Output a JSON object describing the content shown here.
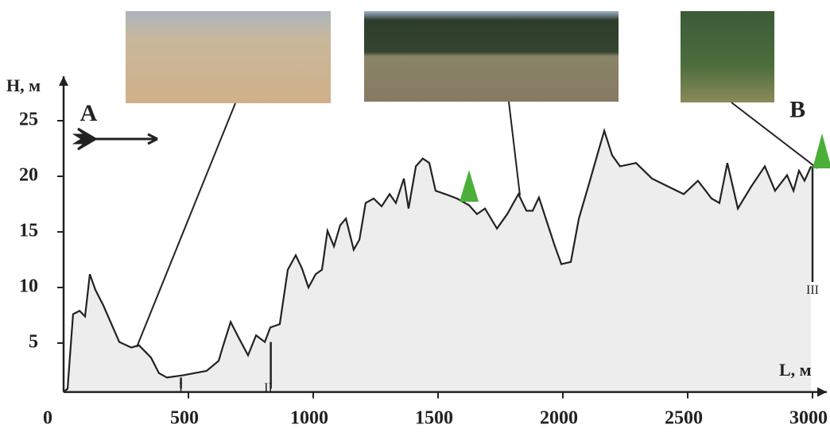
{
  "chart_data": {
    "type": "area",
    "x_label": "L, м",
    "y_label": "H, м",
    "x": [
      0,
      16,
      38,
      64,
      86,
      105,
      127,
      159,
      223,
      271,
      302,
      350,
      382,
      414,
      478,
      573,
      621,
      637,
      669,
      701,
      739,
      771,
      806,
      828,
      866,
      898,
      930,
      955,
      981,
      1010,
      1035,
      1057,
      1083,
      1108,
      1131,
      1162,
      1185,
      1210,
      1242,
      1274,
      1306,
      1331,
      1363,
      1382,
      1411,
      1439,
      1465,
      1490,
      1529,
      1576,
      1624,
      1656,
      1688,
      1736,
      1777,
      1822,
      1854,
      1879,
      1904,
      1936,
      1968,
      1994,
      2032,
      2064,
      2102,
      2140,
      2166,
      2197,
      2229,
      2293,
      2357,
      2420,
      2484,
      2541,
      2596,
      2627,
      2659,
      2701,
      2755,
      2809,
      2850,
      2898,
      2924,
      2946,
      2968,
      2994
    ],
    "values": [
      0.6,
      0.9,
      7.6,
      7.9,
      7.4,
      11.2,
      9.8,
      8.4,
      5.1,
      4.6,
      4.8,
      3.7,
      2.3,
      1.9,
      2.1,
      2.5,
      3.4,
      4.6,
      6.9,
      5.5,
      3.9,
      5.7,
      5.1,
      6.4,
      6.7,
      11.6,
      12.9,
      11.7,
      10,
      11.2,
      11.6,
      15.1,
      13.7,
      15.6,
      16.2,
      13.4,
      14.3,
      17.6,
      18,
      17.3,
      18.4,
      17.6,
      19.8,
      17.1,
      20.9,
      21.6,
      21.2,
      18.7,
      18.4,
      18,
      17.4,
      16.6,
      17.1,
      15.3,
      16.6,
      18.4,
      16.9,
      16.9,
      18.1,
      15.9,
      13.7,
      12.1,
      12.3,
      16.2,
      19.1,
      22.1,
      24.1,
      21.9,
      20.9,
      21.2,
      19.8,
      19.1,
      18.4,
      19.6,
      18,
      17.6,
      21.2,
      17.1,
      19.1,
      20.9,
      18.7,
      20.1,
      18.7,
      20.5,
      19.6,
      20.9
    ],
    "color": "#222222",
    "fill": "#ededed",
    "xlim": [
      0,
      3080
    ],
    "ylim": [
      0,
      29
    ],
    "xticks": [
      0,
      500,
      1000,
      1500,
      2000,
      2500,
      3000
    ],
    "yticks": [
      5,
      10,
      15,
      20,
      25
    ],
    "annotations": [
      {
        "text": "A",
        "x": 100,
        "y": 25.5
      },
      {
        "text": "B",
        "x": 2940,
        "y": 25.8
      },
      {
        "text": "I",
        "x": 470,
        "y": 0.9
      },
      {
        "text": "II",
        "x": 820,
        "y": 0.9
      },
      {
        "text": "III",
        "x": 3000,
        "y": 9.7
      }
    ]
  }
}
